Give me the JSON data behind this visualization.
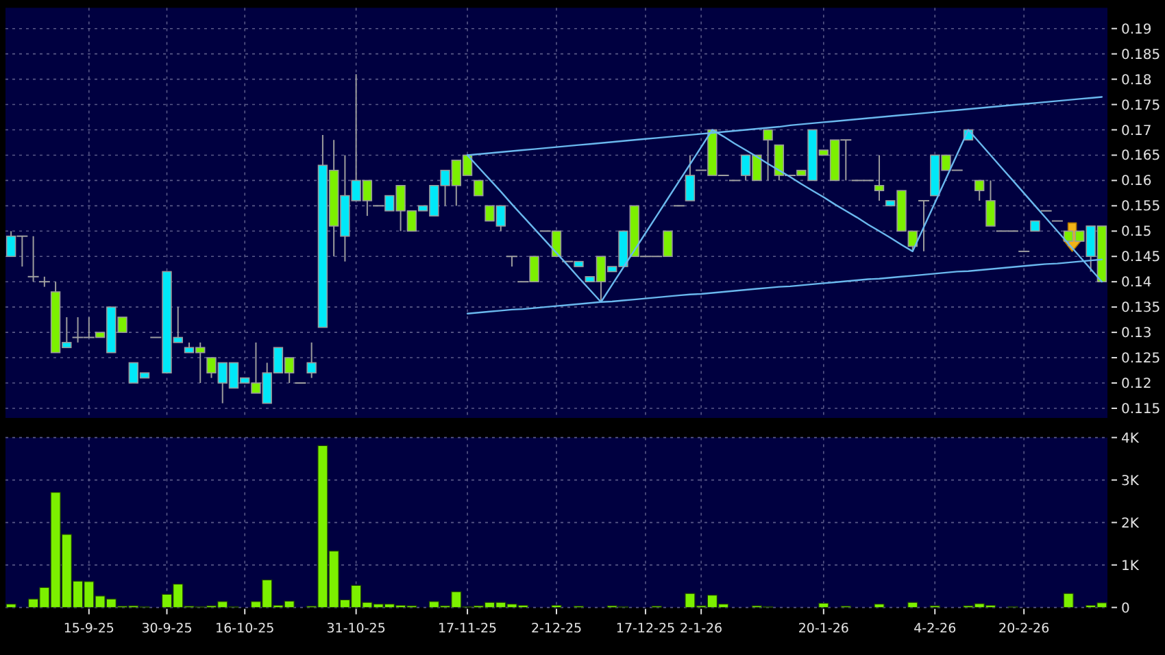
{
  "chart_data": [
    {
      "type": "candlestick",
      "categories": [
        null,
        null,
        null,
        null,
        null,
        null,
        null,
        null,
        null,
        null,
        null,
        null,
        null,
        null,
        null,
        null,
        null,
        null,
        null,
        null,
        null,
        null,
        null,
        null,
        null,
        null,
        null,
        null,
        null,
        null,
        null,
        null,
        null,
        null,
        null,
        null,
        null,
        null,
        null,
        null,
        null,
        null,
        null,
        null,
        null,
        null,
        null,
        null,
        null,
        null,
        null,
        null,
        null,
        null,
        null,
        null,
        null,
        null,
        null,
        null,
        null,
        null,
        null,
        null,
        null,
        null,
        null,
        null,
        null,
        null,
        null,
        null,
        null,
        null,
        null,
        null,
        null,
        null,
        null,
        null,
        null,
        null,
        null,
        null,
        null,
        null,
        null,
        null,
        null,
        null,
        null,
        null,
        null,
        null,
        null,
        null,
        null,
        null,
        null
      ],
      "ohlc": [
        [
          0.145,
          0.15,
          0.145,
          0.149
        ],
        [
          0.149,
          0.149,
          0.143,
          0.149
        ],
        [
          0.141,
          0.149,
          0.14,
          0.141
        ],
        [
          0.14,
          0.141,
          0.139,
          0.14
        ],
        [
          0.138,
          0.14,
          0.126,
          0.126
        ],
        [
          0.127,
          0.133,
          0.127,
          0.128
        ],
        [
          0.129,
          0.133,
          0.128,
          0.129
        ],
        [
          0.129,
          0.133,
          0.129,
          0.129
        ],
        [
          0.13,
          0.13,
          0.129,
          0.129
        ],
        [
          0.126,
          0.135,
          0.126,
          0.135
        ],
        [
          0.133,
          0.133,
          0.13,
          0.13
        ],
        [
          0.12,
          0.124,
          0.12,
          0.124
        ],
        [
          0.121,
          0.122,
          0.121,
          0.122
        ],
        [
          0.129,
          0.129,
          0.129,
          0.129
        ],
        [
          0.122,
          0.142,
          0.122,
          0.142
        ],
        [
          0.128,
          0.135,
          0.128,
          0.129
        ],
        [
          0.126,
          0.128,
          0.126,
          0.127
        ],
        [
          0.127,
          0.128,
          0.12,
          0.126
        ],
        [
          0.125,
          0.125,
          0.121,
          0.122
        ],
        [
          0.12,
          0.124,
          0.116,
          0.124
        ],
        [
          0.119,
          0.124,
          0.119,
          0.124
        ],
        [
          0.12,
          0.121,
          0.12,
          0.121
        ],
        [
          0.12,
          0.128,
          0.118,
          0.118
        ],
        [
          0.116,
          0.124,
          0.116,
          0.122
        ],
        [
          0.122,
          0.127,
          0.122,
          0.127
        ],
        [
          0.125,
          0.125,
          0.12,
          0.122
        ],
        [
          0.12,
          0.12,
          0.12,
          0.12
        ],
        [
          0.122,
          0.128,
          0.121,
          0.124
        ],
        [
          0.131,
          0.169,
          0.131,
          0.163
        ],
        [
          0.162,
          0.168,
          0.145,
          0.151
        ],
        [
          0.149,
          0.165,
          0.144,
          0.157
        ],
        [
          0.156,
          0.181,
          0.156,
          0.16
        ],
        [
          0.16,
          0.16,
          0.153,
          0.156
        ],
        [
          0.155,
          0.155,
          0.155,
          0.155
        ],
        [
          0.154,
          0.157,
          0.154,
          0.157
        ],
        [
          0.159,
          0.159,
          0.15,
          0.154
        ],
        [
          0.154,
          0.154,
          0.15,
          0.15
        ],
        [
          0.154,
          0.155,
          0.154,
          0.155
        ],
        [
          0.153,
          0.159,
          0.153,
          0.159
        ],
        [
          0.159,
          0.162,
          0.155,
          0.162
        ],
        [
          0.164,
          0.164,
          0.155,
          0.159
        ],
        [
          0.165,
          0.165,
          0.161,
          0.161
        ],
        [
          0.16,
          0.16,
          0.157,
          0.157
        ],
        [
          0.155,
          0.155,
          0.152,
          0.152
        ],
        [
          0.151,
          0.155,
          0.15,
          0.155
        ],
        [
          0.145,
          0.145,
          0.143,
          0.145
        ],
        [
          0.14,
          0.14,
          0.14,
          0.14
        ],
        [
          0.145,
          0.145,
          0.14,
          0.14
        ],
        [
          0.15,
          0.15,
          0.15,
          0.15
        ],
        [
          0.15,
          0.15,
          0.145,
          0.145
        ],
        [
          0.144,
          0.144,
          0.144,
          0.144
        ],
        [
          0.143,
          0.144,
          0.143,
          0.144
        ],
        [
          0.14,
          0.141,
          0.14,
          0.141
        ],
        [
          0.145,
          0.145,
          0.136,
          0.14
        ],
        [
          0.142,
          0.143,
          0.142,
          0.143
        ],
        [
          0.143,
          0.15,
          0.143,
          0.15
        ],
        [
          0.155,
          0.155,
          0.145,
          0.145
        ],
        [
          0.145,
          0.145,
          0.145,
          0.145
        ],
        [
          0.145,
          0.145,
          0.145,
          0.145
        ],
        [
          0.15,
          0.15,
          0.145,
          0.145
        ],
        [
          0.155,
          0.155,
          0.155,
          0.155
        ],
        [
          0.156,
          0.165,
          0.156,
          0.161
        ],
        [
          0.162,
          0.162,
          0.162,
          0.162
        ],
        [
          0.17,
          0.17,
          0.161,
          0.161
        ],
        [
          0.161,
          0.161,
          0.161,
          0.161
        ],
        [
          0.16,
          0.16,
          0.16,
          0.16
        ],
        [
          0.161,
          0.165,
          0.16,
          0.165
        ],
        [
          0.165,
          0.165,
          0.16,
          0.16
        ],
        [
          0.17,
          0.17,
          0.16,
          0.168
        ],
        [
          0.167,
          0.167,
          0.16,
          0.161
        ],
        [
          0.161,
          0.161,
          0.161,
          0.161
        ],
        [
          0.162,
          0.162,
          0.161,
          0.161
        ],
        [
          0.16,
          0.17,
          0.16,
          0.17
        ],
        [
          0.166,
          0.166,
          0.165,
          0.165
        ],
        [
          0.168,
          0.168,
          0.16,
          0.16
        ],
        [
          0.168,
          0.168,
          0.16,
          0.168
        ],
        [
          0.16,
          0.16,
          0.16,
          0.16
        ],
        [
          0.16,
          0.16,
          0.16,
          0.16
        ],
        [
          0.159,
          0.165,
          0.156,
          0.158
        ],
        [
          0.155,
          0.156,
          0.155,
          0.156
        ],
        [
          0.158,
          0.158,
          0.15,
          0.15
        ],
        [
          0.15,
          0.15,
          0.146,
          0.147
        ],
        [
          0.156,
          0.156,
          0.146,
          0.156
        ],
        [
          0.157,
          0.165,
          0.157,
          0.165
        ],
        [
          0.165,
          0.165,
          0.162,
          0.162
        ],
        [
          0.162,
          0.162,
          0.162,
          0.162
        ],
        [
          0.168,
          0.17,
          0.168,
          0.17
        ],
        [
          0.16,
          0.16,
          0.156,
          0.158
        ],
        [
          0.156,
          0.16,
          0.151,
          0.151
        ],
        [
          0.15,
          0.15,
          0.15,
          0.15
        ],
        [
          0.15,
          0.15,
          0.15,
          0.15
        ],
        [
          0.146,
          0.146,
          0.146,
          0.146
        ],
        [
          0.15,
          0.152,
          0.15,
          0.152
        ],
        [
          0.154,
          0.154,
          0.154,
          0.154
        ],
        [
          0.152,
          0.152,
          0.152,
          0.152
        ],
        [
          0.15,
          0.15,
          0.147,
          0.148
        ],
        [
          0.15,
          0.15,
          0.148,
          0.148
        ],
        [
          0.145,
          0.151,
          0.142,
          0.151
        ],
        [
          0.151,
          0.151,
          0.14,
          0.14
        ]
      ],
      "colors": [
        "#00e8f8",
        "#a0a0a0",
        "#a0a0a0",
        "#a0a0a0",
        "#7cf000",
        "#00e8f8",
        "#a0a0a0",
        "#a0a0a0",
        "#7cf000",
        "#00e8f8",
        "#7cf000",
        "#00e8f8",
        "#00e8f8",
        "#a0a0a0",
        "#00e8f8",
        "#00e8f8",
        "#00e8f8",
        "#7cf000",
        "#7cf000",
        "#00e8f8",
        "#00e8f8",
        "#00e8f8",
        "#7cf000",
        "#00e8f8",
        "#00e8f8",
        "#7cf000",
        "#a0a0a0",
        "#00e8f8",
        "#00e8f8",
        "#7cf000",
        "#00e8f8",
        "#00e8f8",
        "#7cf000",
        "#a0a0a0",
        "#00e8f8",
        "#7cf000",
        "#7cf000",
        "#00e8f8",
        "#00e8f8",
        "#00e8f8",
        "#7cf000",
        "#7cf000",
        "#7cf000",
        "#7cf000",
        "#00e8f8",
        "#a0a0a0",
        "#a0a0a0",
        "#7cf000",
        "#a0a0a0",
        "#7cf000",
        "#a0a0a0",
        "#00e8f8",
        "#00e8f8",
        "#7cf000",
        "#00e8f8",
        "#00e8f8",
        "#7cf000",
        "#a0a0a0",
        "#a0a0a0",
        "#7cf000",
        "#a0a0a0",
        "#00e8f8",
        "#a0a0a0",
        "#7cf000",
        "#a0a0a0",
        "#a0a0a0",
        "#00e8f8",
        "#7cf000",
        "#7cf000",
        "#7cf000",
        "#a0a0a0",
        "#7cf000",
        "#00e8f8",
        "#7cf000",
        "#7cf000",
        "#a0a0a0",
        "#a0a0a0",
        "#a0a0a0",
        "#7cf000",
        "#00e8f8",
        "#7cf000",
        "#7cf000",
        "#a0a0a0",
        "#00e8f8",
        "#7cf000",
        "#a0a0a0",
        "#00e8f8",
        "#7cf000",
        "#7cf000",
        "#a0a0a0",
        "#a0a0a0",
        "#a0a0a0",
        "#00e8f8",
        "#a0a0a0",
        "#a0a0a0",
        "#7cf000",
        "#7cf000",
        "#00e8f8",
        "#7cf000"
      ],
      "series": [
        {
          "type": "line",
          "color": "#6ab8ee",
          "values": [
            null,
            null,
            null,
            null,
            null,
            null,
            null,
            null,
            null,
            null,
            null,
            null,
            null,
            null,
            null,
            null,
            null,
            null,
            null,
            null,
            null,
            null,
            null,
            null,
            null,
            null,
            null,
            null,
            null,
            null,
            null,
            null,
            null,
            null,
            null,
            null,
            null,
            null,
            null,
            null,
            null,
            0.165,
            0.1652,
            0.1654,
            0.1656,
            0.1658,
            0.166,
            0.1662,
            0.1664,
            0.1666,
            0.1668,
            0.167,
            0.1672,
            0.1674,
            0.1676,
            0.1678,
            0.168,
            0.1682,
            0.1684,
            0.1686,
            0.1688,
            0.169,
            0.1692,
            0.1694,
            0.1696,
            0.1698,
            0.17,
            0.1702,
            0.1704,
            0.1706,
            0.1709,
            0.1711,
            0.1713,
            0.1715,
            0.1717,
            0.1719,
            0.1721,
            0.1723,
            0.1725,
            0.1727,
            0.1729,
            0.1731,
            0.1733,
            0.1735,
            0.1737,
            0.1739,
            0.1741,
            0.1743,
            0.1745,
            0.1747,
            0.1749,
            0.1751,
            0.1753,
            0.1755,
            0.1757,
            0.1759,
            0.1761,
            0.1763,
            0.1765
          ]
        },
        {
          "type": "line",
          "color": "#6ab8ee",
          "values": [
            null,
            null,
            null,
            null,
            null,
            null,
            null,
            null,
            null,
            null,
            null,
            null,
            null,
            null,
            null,
            null,
            null,
            null,
            null,
            null,
            null,
            null,
            null,
            null,
            null,
            null,
            null,
            null,
            null,
            null,
            null,
            null,
            null,
            null,
            null,
            null,
            null,
            null,
            null,
            null,
            null,
            0.1337,
            0.1339,
            0.1341,
            0.1343,
            0.1345,
            0.1346,
            0.1348,
            0.135,
            0.1352,
            0.1354,
            0.1356,
            0.1358,
            0.136,
            0.1361,
            0.1363,
            0.1365,
            0.1367,
            0.1369,
            0.1371,
            0.1373,
            0.1375,
            0.1376,
            0.1378,
            0.138,
            0.1382,
            0.1384,
            0.1386,
            0.1388,
            0.139,
            0.1391,
            0.1393,
            0.1395,
            0.1397,
            0.1399,
            0.1401,
            0.1403,
            0.1405,
            0.1406,
            0.1408,
            0.141,
            0.1412,
            0.1414,
            0.1416,
            0.1418,
            0.142,
            0.1421,
            0.1423,
            0.1425,
            0.1427,
            0.1429,
            0.1431,
            0.1433,
            0.1435,
            0.1436,
            0.1438,
            0.144,
            0.1442,
            0.1444
          ]
        },
        {
          "type": "line",
          "color": "#6ab8ee",
          "values": [
            null,
            null,
            null,
            null,
            null,
            null,
            null,
            null,
            null,
            null,
            null,
            null,
            null,
            null,
            null,
            null,
            null,
            null,
            null,
            null,
            null,
            null,
            null,
            null,
            null,
            null,
            null,
            null,
            null,
            null,
            null,
            null,
            null,
            null,
            null,
            null,
            null,
            null,
            null,
            null,
            null,
            0.165,
            0.1626,
            0.1602,
            0.1578,
            0.1553,
            0.1529,
            0.1505,
            0.1481,
            0.1457,
            0.1433,
            0.1408,
            0.1384,
            0.136,
            0.1394,
            0.1428,
            0.1462,
            0.1496,
            0.153,
            0.1564,
            0.1598,
            0.1632,
            0.1666,
            0.17,
            0.1687,
            0.1673,
            0.166,
            0.1647,
            0.1633,
            0.162,
            0.1607,
            0.1593,
            0.158,
            0.1567,
            0.1553,
            0.154,
            0.1527,
            0.1513,
            0.15,
            0.1487,
            0.1473,
            0.146,
            0.1508,
            0.1556,
            0.1604,
            0.1652,
            0.17,
            0.1675,
            0.165,
            0.1625,
            0.16,
            0.1575,
            0.155,
            0.1525,
            0.15,
            0.1475,
            0.145,
            0.1425,
            0.14
          ]
        }
      ],
      "ylim": [
        0.1131,
        0.1941
      ],
      "yticks": [
        0.115,
        0.12,
        0.125,
        0.13,
        0.135,
        0.14,
        0.145,
        0.15,
        0.155,
        0.16,
        0.165,
        0.17,
        0.175,
        0.18,
        0.185,
        0.19
      ],
      "grid": true,
      "tick_labels": "y"
    },
    {
      "type": "bar",
      "categories": [
        null,
        null,
        null,
        null,
        null,
        null,
        null,
        "15-9-25",
        null,
        null,
        null,
        null,
        null,
        null,
        "30-9-25",
        null,
        null,
        null,
        null,
        null,
        null,
        "16-10-25",
        null,
        null,
        null,
        null,
        null,
        null,
        null,
        null,
        null,
        "31-10-25",
        null,
        null,
        null,
        null,
        null,
        null,
        null,
        null,
        null,
        "17-11-25",
        null,
        null,
        null,
        null,
        null,
        null,
        null,
        "2-12-25",
        null,
        null,
        null,
        null,
        null,
        null,
        null,
        "17-12-25",
        null,
        null,
        null,
        null,
        "2-1-26",
        null,
        null,
        null,
        null,
        null,
        null,
        null,
        null,
        null,
        null,
        "20-1-26",
        null,
        null,
        null,
        null,
        null,
        null,
        null,
        null,
        null,
        "4-2-26",
        null,
        null,
        null,
        null,
        null,
        null,
        null,
        "20-2-26",
        null,
        null,
        null,
        null,
        null,
        null,
        null
      ],
      "values": [
        80,
        0,
        200,
        470,
        2710,
        1720,
        620,
        610,
        270,
        200,
        30,
        40,
        20,
        0,
        310,
        550,
        30,
        20,
        40,
        140,
        20,
        0,
        140,
        650,
        50,
        150,
        0,
        30,
        3810,
        1330,
        180,
        520,
        120,
        80,
        80,
        50,
        40,
        0,
        140,
        40,
        370,
        20,
        40,
        120,
        120,
        80,
        50,
        0,
        0,
        50,
        0,
        30,
        0,
        0,
        40,
        20,
        0,
        0,
        30,
        0,
        0,
        330,
        40,
        290,
        80,
        0,
        0,
        40,
        20,
        0,
        0,
        0,
        0,
        100,
        0,
        30,
        0,
        0,
        80,
        0,
        0,
        120,
        0,
        40,
        0,
        0,
        40,
        90,
        50,
        0,
        20,
        0,
        0,
        0,
        0,
        330,
        0,
        50,
        110
      ],
      "color": "#7cf000",
      "ylim": [
        0,
        4000
      ],
      "yticks": [
        0,
        {
          "value": 1000,
          "label": "1K"
        },
        {
          "value": 2000,
          "label": "2K"
        },
        {
          "value": 3000,
          "label": "3K"
        },
        {
          "value": 4000,
          "label": "4K"
        }
      ],
      "grid": true
    }
  ]
}
